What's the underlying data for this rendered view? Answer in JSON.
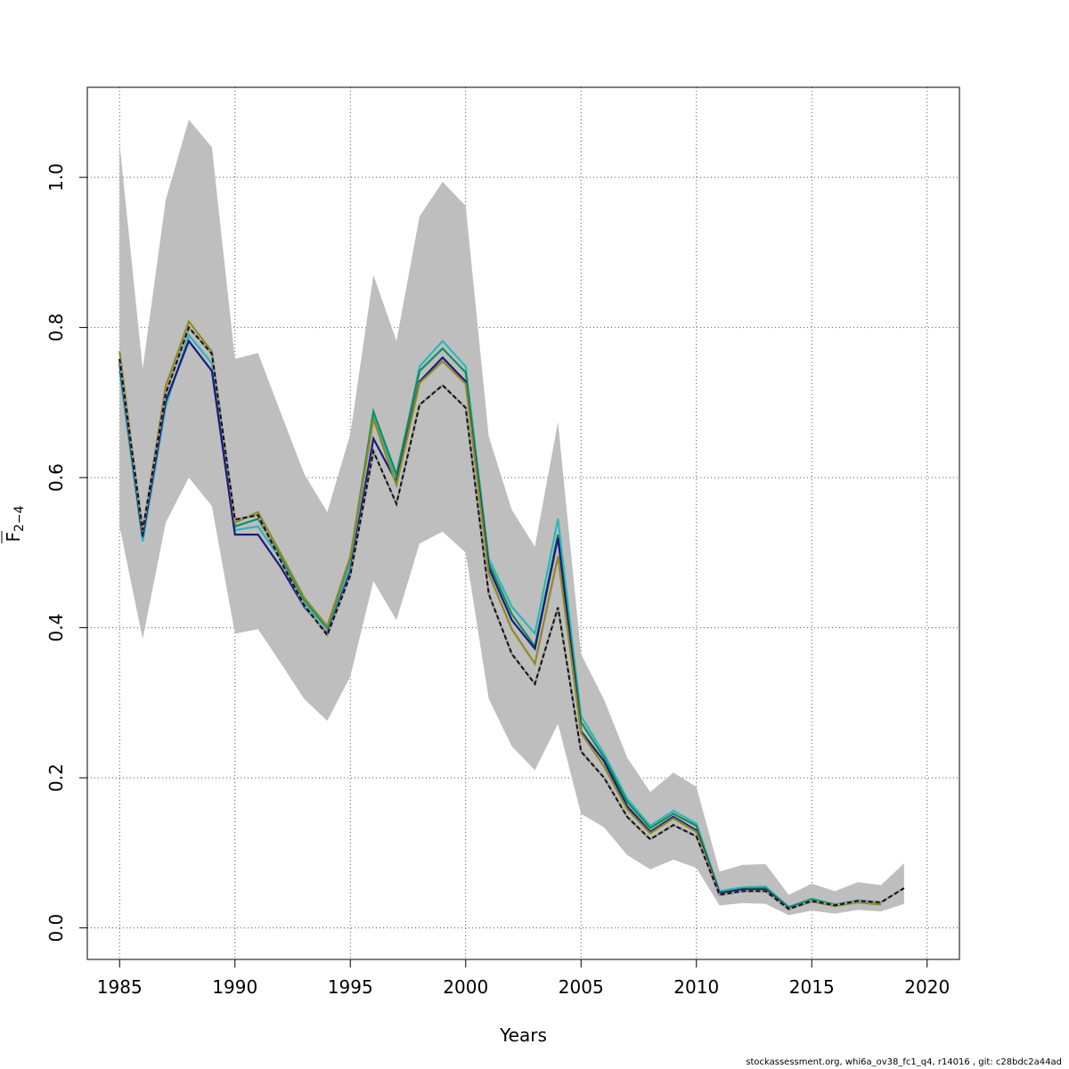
{
  "chart_data": {
    "type": "line",
    "title": "",
    "xlabel": "Years",
    "ylabel_main": "F",
    "ylabel_sub": "2−4",
    "xlim": [
      1983.6,
      2021.4
    ],
    "ylim": [
      -0.042,
      1.12
    ],
    "x_ticks": [
      1985,
      1990,
      1995,
      2000,
      2005,
      2010,
      2015,
      2020
    ],
    "y_ticks": [
      0.0,
      0.2,
      0.4,
      0.6,
      0.8,
      1.0
    ],
    "y_tick_labels": [
      "0.0",
      "0.2",
      "0.4",
      "0.6",
      "0.8",
      "1.0"
    ],
    "grid": true,
    "confidence_band": {
      "color": "#bebebe",
      "years": [
        1985,
        1986,
        1987,
        1988,
        1989,
        1990,
        1991,
        1992,
        1993,
        1994,
        1995,
        1996,
        1997,
        1998,
        1999,
        2000,
        2001,
        2002,
        2003,
        2004,
        2005,
        2006,
        2007,
        2008,
        2009,
        2010,
        2011,
        2012,
        2013,
        2014,
        2015,
        2016,
        2017,
        2018,
        2019
      ],
      "lower": [
        0.535,
        0.385,
        0.54,
        0.6,
        0.562,
        0.392,
        0.398,
        0.352,
        0.305,
        0.276,
        0.335,
        0.462,
        0.41,
        0.512,
        0.528,
        0.5,
        0.305,
        0.242,
        0.21,
        0.272,
        0.152,
        0.134,
        0.097,
        0.078,
        0.091,
        0.08,
        0.03,
        0.033,
        0.032,
        0.017,
        0.023,
        0.019,
        0.024,
        0.022,
        0.032
      ],
      "upper": [
        1.045,
        0.745,
        0.97,
        1.077,
        1.04,
        0.758,
        0.766,
        0.685,
        0.605,
        0.554,
        0.658,
        0.87,
        0.782,
        0.948,
        0.994,
        0.962,
        0.655,
        0.557,
        0.508,
        0.674,
        0.365,
        0.304,
        0.227,
        0.181,
        0.207,
        0.188,
        0.075,
        0.084,
        0.085,
        0.044,
        0.059,
        0.049,
        0.061,
        0.057,
        0.086
      ]
    },
    "series": [
      {
        "color": "#2fb6b8",
        "years": [
          1985,
          1986,
          1987,
          1988,
          1989,
          1990,
          1991,
          1992,
          1993,
          1994,
          1995,
          1996,
          1997,
          1998,
          1999,
          2000,
          2001,
          2002,
          2003,
          2004,
          2005,
          2006,
          2007,
          2008,
          2009,
          2010,
          2011,
          2012,
          2013,
          2014,
          2015,
          2016,
          2017,
          2018
        ],
        "values": [
          0.742,
          0.515,
          0.695,
          0.79,
          0.752,
          0.53,
          0.535,
          0.49,
          0.432,
          0.398,
          0.485,
          0.68,
          0.598,
          0.748,
          0.782,
          0.748,
          0.492,
          0.428,
          0.392,
          0.545,
          0.282,
          0.232,
          0.172,
          0.136,
          0.156,
          0.139,
          0.049,
          0.054,
          0.055,
          0.028,
          0.039,
          0.031,
          0.037,
          0.034
        ]
      },
      {
        "color": "#0f8f5c",
        "years": [
          1985,
          1986,
          1987,
          1988,
          1989,
          1990,
          1991,
          1992,
          1993,
          1994,
          1995,
          1996,
          1997,
          1998,
          1999,
          2000,
          2001,
          2002,
          2003,
          2004,
          2005,
          2006,
          2007,
          2008,
          2009,
          2010,
          2011,
          2012,
          2013,
          2014,
          2015,
          2016,
          2017,
          2018
        ],
        "values": [
          0.752,
          0.52,
          0.712,
          0.8,
          0.765,
          0.535,
          0.545,
          0.495,
          0.437,
          0.4,
          0.493,
          0.688,
          0.604,
          0.742,
          0.772,
          0.74,
          0.486,
          0.418,
          0.375,
          0.524,
          0.274,
          0.227,
          0.168,
          0.133,
          0.152,
          0.136,
          0.047,
          0.052,
          0.053,
          0.027,
          0.038,
          0.031,
          0.036,
          0.033
        ]
      },
      {
        "color": "#1a1a80",
        "years": [
          1985,
          1986,
          1987,
          1988,
          1989,
          1990,
          1991,
          1992,
          1993,
          1994,
          1995,
          1996,
          1997,
          1998,
          1999,
          2000,
          2001,
          2002,
          2003,
          2004,
          2005,
          2006,
          2007,
          2008,
          2009,
          2010,
          2011,
          2012,
          2013,
          2014,
          2015,
          2016,
          2017,
          2018
        ],
        "values": [
          0.752,
          0.522,
          0.702,
          0.782,
          0.742,
          0.524,
          0.524,
          0.48,
          0.428,
          0.392,
          0.475,
          0.652,
          0.594,
          0.728,
          0.76,
          0.728,
          0.48,
          0.41,
          0.372,
          0.52,
          0.262,
          0.222,
          0.162,
          0.128,
          0.148,
          0.13,
          0.046,
          0.051,
          0.051,
          0.026,
          0.036,
          0.03,
          0.035,
          0.032
        ]
      },
      {
        "color": "#8f8a22",
        "years": [
          1985,
          1986,
          1987,
          1988,
          1989,
          1990,
          1991,
          1992,
          1993,
          1994,
          1995,
          1996,
          1997,
          1998,
          1999,
          2000,
          2001,
          2002,
          2003,
          2004,
          2005,
          2006,
          2007,
          2008,
          2009,
          2010,
          2011,
          2012,
          2013,
          2014,
          2015,
          2016,
          2017,
          2018
        ],
        "values": [
          0.768,
          0.528,
          0.722,
          0.808,
          0.768,
          0.54,
          0.554,
          0.498,
          0.44,
          0.402,
          0.495,
          0.678,
          0.59,
          0.726,
          0.755,
          0.725,
          0.472,
          0.398,
          0.352,
          0.495,
          0.26,
          0.215,
          0.158,
          0.126,
          0.146,
          0.128,
          0.044,
          0.049,
          0.049,
          0.025,
          0.035,
          0.029,
          0.034,
          0.031
        ]
      },
      {
        "color": "#111111",
        "dashed": true,
        "years": [
          1985,
          1986,
          1987,
          1988,
          1989,
          1990,
          1991,
          1992,
          1993,
          1994,
          1995,
          1996,
          1997,
          1998,
          1999,
          2000,
          2001,
          2002,
          2003,
          2004,
          2005,
          2006,
          2007,
          2008,
          2009,
          2010,
          2011,
          2012,
          2013,
          2014,
          2015,
          2016,
          2017,
          2018,
          2019
        ],
        "values": [
          0.758,
          0.53,
          0.712,
          0.8,
          0.765,
          0.544,
          0.55,
          0.488,
          0.43,
          0.39,
          0.47,
          0.635,
          0.565,
          0.697,
          0.723,
          0.693,
          0.445,
          0.365,
          0.325,
          0.427,
          0.235,
          0.2,
          0.148,
          0.118,
          0.137,
          0.122,
          0.044,
          0.049,
          0.049,
          0.025,
          0.036,
          0.03,
          0.036,
          0.034,
          0.053
        ]
      }
    ]
  },
  "footer_text": "stockassessment.org, whi6a_ov38_fc1_q4, r14016 , git: c28bdc2a44ad"
}
